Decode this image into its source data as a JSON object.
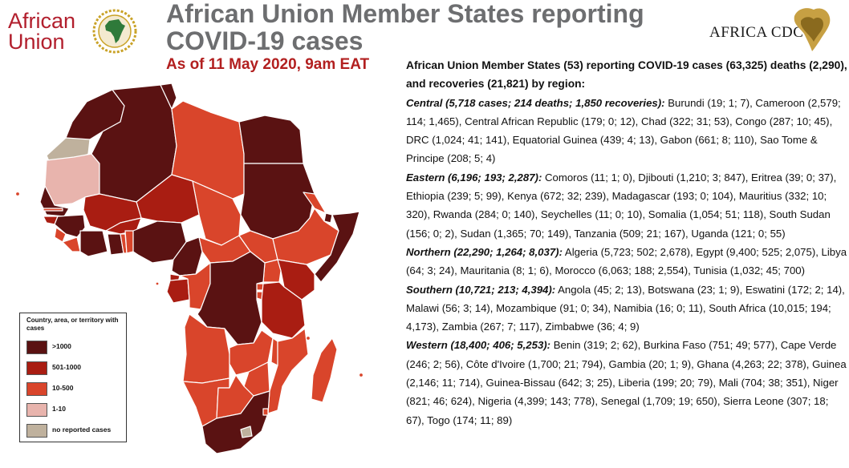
{
  "header": {
    "au_logo_line1": "African",
    "au_logo_line2": "Union",
    "title": "African Union Member States reporting COVID-19 cases",
    "subtitle": "As of 11 May 2020, 9am EAT",
    "cdc_logo_text": "AFRICA CDC"
  },
  "legend": {
    "title": "Country, area, or territory with cases",
    "items": [
      {
        "label": ">1000",
        "color": "#5a1212"
      },
      {
        "label": "501-1000",
        "color": "#a91d12"
      },
      {
        "label": "10-500",
        "color": "#d9452b"
      },
      {
        "label": "1-10",
        "color": "#e8b4ad"
      },
      {
        "label": "no reported cases",
        "color": "#bfb19d"
      }
    ]
  },
  "summary": {
    "intro": "African Union Member States (53) reporting COVID-19 cases (63,325) deaths (2,290), and recoveries (21,821) by region:",
    "regions": [
      {
        "head": "Central (5,718 cases; 214 deaths; 1,850 recoveries):",
        "body": " Burundi (19; 1; 7), Cameroon (2,579; 114; 1,465), Central African Republic (179; 0; 12), Chad (322; 31; 53), Congo (287; 10; 45), DRC (1,024; 41; 141), Equatorial Guinea (439; 4; 13), Gabon (661; 8; 110), Sao Tome & Principe (208; 5; 4)"
      },
      {
        "head": "Eastern (6,196; 193; 2,287):",
        "body": " Comoros (11; 1; 0), Djibouti (1,210; 3; 847), Eritrea (39; 0; 37), Ethiopia (239; 5; 99), Kenya (672; 32; 239), Madagascar (193; 0; 104), Mauritius (332; 10; 320), Rwanda (284; 0; 140), Seychelles (11; 0; 10), Somalia (1,054; 51; 118), South Sudan (156; 0; 2), Sudan (1,365; 70; 149), Tanzania (509; 21; 167), Uganda (121; 0; 55)"
      },
      {
        "head": "Northern (22,290; 1,264; 8,037):",
        "body": " Algeria (5,723; 502; 2,678), Egypt (9,400; 525; 2,075), Libya (64; 3; 24), Mauritania (8; 1; 6), Morocco (6,063; 188; 2,554), Tunisia (1,032; 45; 700)"
      },
      {
        "head": "Southern (10,721; 213; 4,394):",
        "body": " Angola (45; 2; 13), Botswana (23; 1; 9), Eswatini (172; 2; 14), Malawi (56; 3; 14), Mozambique (91; 0; 34),  Namibia (16; 0; 11), South Africa (10,015; 194; 4,173), Zambia (267; 7; 117), Zimbabwe (36; 4; 9)"
      },
      {
        "head": "Western (18,400; 406; 5,253):",
        "body": " Benin (319; 2; 62), Burkina Faso (751; 49; 577), Cape Verde (246; 2; 56), Côte d'Ivoire (1,700; 21; 794), Gambia (20; 1; 9), Ghana (4,263; 22; 378), Guinea (2,146; 11; 714), Guinea-Bissau (642; 3; 25), Liberia (199; 20; 79), Mali (704; 38; 351), Niger (821; 46; 624), Nigeria (4,399; 143; 778), Senegal (1,709; 19; 650), Sierra Leone (307; 18; 67), Togo (174; 11; 89)"
      }
    ]
  },
  "colors": {
    "title_gray": "#6d6e70",
    "subtitle_red": "#b21f1f",
    "border": "#ffffff"
  }
}
